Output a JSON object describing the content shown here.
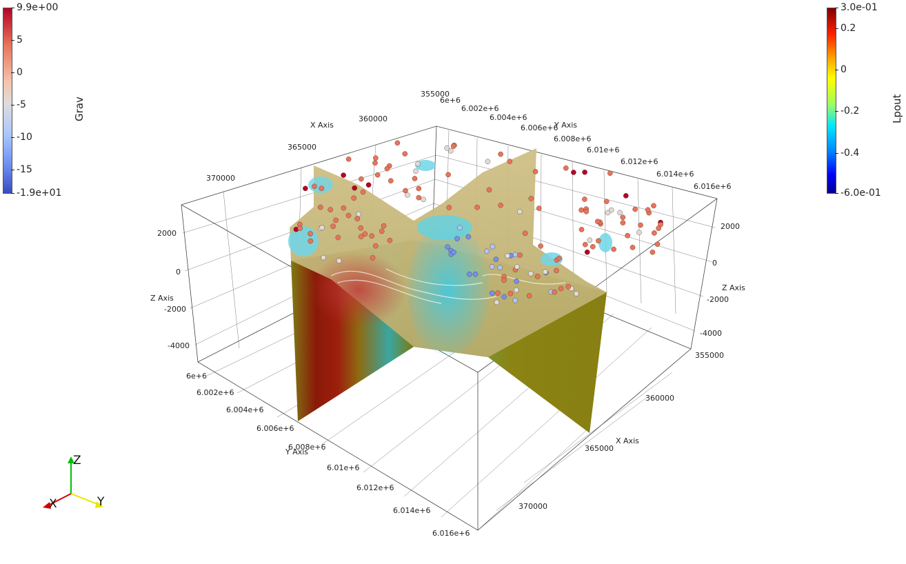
{
  "colorbar_grav": {
    "title": "Grav",
    "ticks": [
      "9.9e+00",
      "5",
      "0",
      "-5",
      "-10",
      "-15",
      "-1.9e+01"
    ],
    "colors": [
      "#b40426",
      "#e7745b",
      "#f5c4ac",
      "#dddcdc",
      "#aac7fd",
      "#6f92f3",
      "#3b4cc0"
    ]
  },
  "colorbar_lpout": {
    "title": "Lpout",
    "ticks": [
      "3.0e-01",
      "0.2",
      "0",
      "-0.2",
      "-0.4",
      "-6.0e-01"
    ],
    "colors": [
      "#800000",
      "#ff2000",
      "#ffff00",
      "#00e5ff",
      "#0000ff",
      "#00008f"
    ]
  },
  "axes": {
    "x_title_top": "X Axis",
    "y_title_top": "Y Axis",
    "x_title_right": "X Axis",
    "y_title_bottom": "Y Axis",
    "z_title_left": "Z Axis",
    "z_title_right": "Z Axis",
    "x_ticks_top": [
      "355000",
      "360000",
      "365000",
      "370000"
    ],
    "y_ticks_top": [
      "6e+6",
      "6.002e+6",
      "6.004e+6",
      "6.006e+6",
      "6.008e+6",
      "6.01e+6",
      "6.012e+6",
      "6.014e+6",
      "6.016e+6"
    ],
    "z_ticks_left": [
      "2000",
      "0",
      "-2000",
      "-4000"
    ],
    "z_ticks_right": [
      "2000",
      "0",
      "-2000",
      "-4000"
    ],
    "y_ticks_bottom": [
      "6e+6",
      "6.002e+6",
      "6.004e+6",
      "6.006e+6",
      "6.008e+6",
      "6.01e+6",
      "6.012e+6",
      "6.014e+6",
      "6.016e+6"
    ],
    "x_ticks_right": [
      "355000",
      "360000",
      "365000",
      "370000"
    ]
  },
  "orientation": {
    "x_label": "X",
    "y_label": "Y",
    "z_label": "Z",
    "x_color": "#d40000",
    "y_color": "#e8e800",
    "z_color": "#00c000"
  }
}
